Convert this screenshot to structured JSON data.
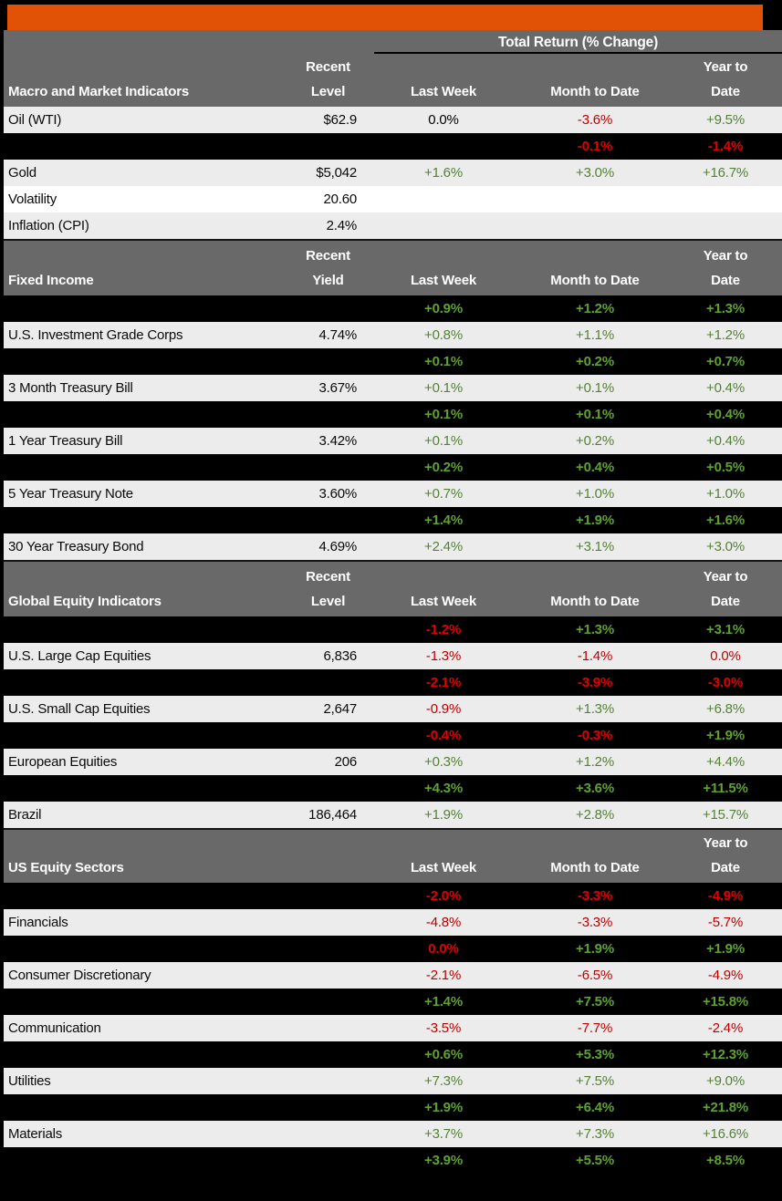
{
  "colors": {
    "banner_color": "#E15206",
    "header_bg": "#696969",
    "header_text": "#FFFFFF",
    "row_gray": "#ECECEC",
    "row_white": "#FFFFFF",
    "hidden_bg": "#000000",
    "green": "#548235",
    "green_on_black": "#5FA232",
    "red": "#C00000",
    "red_on_black": "#E10000"
  },
  "header": {
    "total_return_title": "Total Return (% Change)"
  },
  "columns": {
    "last_week": "Last Week",
    "month_to_date": "Month to Date",
    "year_to_line1": "Year to",
    "year_to_line2": "Date"
  },
  "sections": [
    {
      "title": "Macro and Market Indicators",
      "unit_line1": "Recent",
      "unit_line2": "Level",
      "has_total_return_title": true,
      "rows": [
        {
          "kind": "data",
          "shade": "gray",
          "label": "Oil (WTI)",
          "level": "$62.9",
          "values": [
            {
              "text": "0.0%",
              "color": "black"
            },
            {
              "text": "-3.6%",
              "color": "red"
            },
            {
              "text": "+9.5%",
              "color": "green"
            }
          ]
        },
        {
          "kind": "hidden",
          "values": [
            null,
            {
              "text": "-0.1%",
              "color": "red"
            },
            {
              "text": "-1.4%",
              "color": "red"
            }
          ]
        },
        {
          "kind": "data",
          "shade": "gray",
          "label": "Gold",
          "level": "$5,042",
          "values": [
            {
              "text": "+1.6%",
              "color": "green"
            },
            {
              "text": "+3.0%",
              "color": "green"
            },
            {
              "text": "+16.7%",
              "color": "green"
            }
          ]
        },
        {
          "kind": "data",
          "shade": "white",
          "label": "Volatility",
          "level": "20.60",
          "values": [
            null,
            null,
            null
          ]
        },
        {
          "kind": "data",
          "shade": "gray",
          "label": "Inflation (CPI)",
          "level": "2.4%",
          "values": [
            null,
            null,
            null
          ]
        }
      ]
    },
    {
      "title": "Fixed Income",
      "unit_line1": "Recent",
      "unit_line2": "Yield",
      "has_total_return_title": false,
      "rows": [
        {
          "kind": "hidden",
          "values": [
            {
              "text": "+0.9%",
              "color": "green"
            },
            {
              "text": "+1.2%",
              "color": "green"
            },
            {
              "text": "+1.3%",
              "color": "green"
            }
          ]
        },
        {
          "kind": "data",
          "shade": "gray",
          "label": "U.S. Investment Grade Corps",
          "level": "4.74%",
          "values": [
            {
              "text": "+0.8%",
              "color": "green"
            },
            {
              "text": "+1.1%",
              "color": "green"
            },
            {
              "text": "+1.2%",
              "color": "green"
            }
          ]
        },
        {
          "kind": "hidden",
          "values": [
            {
              "text": "+0.1%",
              "color": "green"
            },
            {
              "text": "+0.2%",
              "color": "green"
            },
            {
              "text": "+0.7%",
              "color": "green"
            }
          ]
        },
        {
          "kind": "data",
          "shade": "gray",
          "label": "3 Month Treasury Bill",
          "level": "3.67%",
          "values": [
            {
              "text": "+0.1%",
              "color": "green"
            },
            {
              "text": "+0.1%",
              "color": "green"
            },
            {
              "text": "+0.4%",
              "color": "green"
            }
          ]
        },
        {
          "kind": "hidden",
          "values": [
            {
              "text": "+0.1%",
              "color": "green"
            },
            {
              "text": "+0.1%",
              "color": "green"
            },
            {
              "text": "+0.4%",
              "color": "green"
            }
          ]
        },
        {
          "kind": "data",
          "shade": "gray",
          "label": "1 Year Treasury Bill",
          "level": "3.42%",
          "values": [
            {
              "text": "+0.1%",
              "color": "green"
            },
            {
              "text": "+0.2%",
              "color": "green"
            },
            {
              "text": "+0.4%",
              "color": "green"
            }
          ]
        },
        {
          "kind": "hidden",
          "values": [
            {
              "text": "+0.2%",
              "color": "green"
            },
            {
              "text": "+0.4%",
              "color": "green"
            },
            {
              "text": "+0.5%",
              "color": "green"
            }
          ]
        },
        {
          "kind": "data",
          "shade": "gray",
          "label": "5 Year Treasury Note",
          "level": "3.60%",
          "values": [
            {
              "text": "+0.7%",
              "color": "green"
            },
            {
              "text": "+1.0%",
              "color": "green"
            },
            {
              "text": "+1.0%",
              "color": "green"
            }
          ]
        },
        {
          "kind": "hidden",
          "values": [
            {
              "text": "+1.4%",
              "color": "green"
            },
            {
              "text": "+1.9%",
              "color": "green"
            },
            {
              "text": "+1.6%",
              "color": "green"
            }
          ]
        },
        {
          "kind": "data",
          "shade": "gray",
          "label": "30 Year Treasury Bond",
          "level": "4.69%",
          "values": [
            {
              "text": "+2.4%",
              "color": "green"
            },
            {
              "text": "+3.1%",
              "color": "green"
            },
            {
              "text": "+3.0%",
              "color": "green"
            }
          ]
        }
      ]
    },
    {
      "title": "Global Equity Indicators",
      "unit_line1": "Recent",
      "unit_line2": "Level",
      "has_total_return_title": false,
      "rows": [
        {
          "kind": "hidden",
          "values": [
            {
              "text": "-1.2%",
              "color": "red"
            },
            {
              "text": "+1.3%",
              "color": "green"
            },
            {
              "text": "+3.1%",
              "color": "green"
            }
          ]
        },
        {
          "kind": "data",
          "shade": "gray",
          "label": "U.S. Large Cap Equities",
          "level": "6,836",
          "values": [
            {
              "text": "-1.3%",
              "color": "red"
            },
            {
              "text": "-1.4%",
              "color": "red"
            },
            {
              "text": "0.0%",
              "color": "red"
            }
          ]
        },
        {
          "kind": "hidden",
          "values": [
            {
              "text": "-2.1%",
              "color": "red"
            },
            {
              "text": "-3.9%",
              "color": "red"
            },
            {
              "text": "-3.0%",
              "color": "red"
            }
          ]
        },
        {
          "kind": "data",
          "shade": "gray",
          "label": "U.S. Small Cap Equities",
          "level": "2,647",
          "values": [
            {
              "text": "-0.9%",
              "color": "red"
            },
            {
              "text": "+1.3%",
              "color": "green"
            },
            {
              "text": "+6.8%",
              "color": "green"
            }
          ]
        },
        {
          "kind": "hidden",
          "values": [
            {
              "text": "-0.4%",
              "color": "red"
            },
            {
              "text": "-0.3%",
              "color": "red"
            },
            {
              "text": "+1.9%",
              "color": "green"
            }
          ]
        },
        {
          "kind": "data",
          "shade": "gray",
          "label": "European Equities",
          "level": "206",
          "values": [
            {
              "text": "+0.3%",
              "color": "green"
            },
            {
              "text": "+1.2%",
              "color": "green"
            },
            {
              "text": "+4.4%",
              "color": "green"
            }
          ]
        },
        {
          "kind": "hidden",
          "values": [
            {
              "text": "+4.3%",
              "color": "green"
            },
            {
              "text": "+3.6%",
              "color": "green"
            },
            {
              "text": "+11.5%",
              "color": "green"
            }
          ]
        },
        {
          "kind": "data",
          "shade": "gray",
          "label": "Brazil",
          "level": "186,464",
          "values": [
            {
              "text": "+1.9%",
              "color": "green"
            },
            {
              "text": "+2.8%",
              "color": "green"
            },
            {
              "text": "+15.7%",
              "color": "green"
            }
          ]
        }
      ]
    },
    {
      "title": "US Equity Sectors",
      "unit_line1": "",
      "unit_line2": "",
      "has_total_return_title": false,
      "rows": [
        {
          "kind": "hidden",
          "values": [
            {
              "text": "-2.0%",
              "color": "red"
            },
            {
              "text": "-3.3%",
              "color": "red"
            },
            {
              "text": "-4.9%",
              "color": "red"
            }
          ]
        },
        {
          "kind": "data",
          "shade": "gray",
          "label": "Financials",
          "level": "",
          "values": [
            {
              "text": "-4.8%",
              "color": "red"
            },
            {
              "text": "-3.3%",
              "color": "red"
            },
            {
              "text": "-5.7%",
              "color": "red"
            }
          ]
        },
        {
          "kind": "hidden",
          "values": [
            {
              "text": "0.0%",
              "color": "red"
            },
            {
              "text": "+1.9%",
              "color": "green"
            },
            {
              "text": "+1.9%",
              "color": "green"
            }
          ]
        },
        {
          "kind": "data",
          "shade": "gray",
          "label": "Consumer Discretionary",
          "level": "",
          "values": [
            {
              "text": "-2.1%",
              "color": "red"
            },
            {
              "text": "-6.5%",
              "color": "red"
            },
            {
              "text": "-4.9%",
              "color": "red"
            }
          ]
        },
        {
          "kind": "hidden",
          "values": [
            {
              "text": "+1.4%",
              "color": "green"
            },
            {
              "text": "+7.5%",
              "color": "green"
            },
            {
              "text": "+15.8%",
              "color": "green"
            }
          ]
        },
        {
          "kind": "data",
          "shade": "gray",
          "label": "Communication",
          "level": "",
          "values": [
            {
              "text": "-3.5%",
              "color": "red"
            },
            {
              "text": "-7.7%",
              "color": "red"
            },
            {
              "text": "-2.4%",
              "color": "red"
            }
          ]
        },
        {
          "kind": "hidden",
          "values": [
            {
              "text": "+0.6%",
              "color": "green"
            },
            {
              "text": "+5.3%",
              "color": "green"
            },
            {
              "text": "+12.3%",
              "color": "green"
            }
          ]
        },
        {
          "kind": "data",
          "shade": "gray",
          "label": "Utilities",
          "level": "",
          "values": [
            {
              "text": "+7.3%",
              "color": "green"
            },
            {
              "text": "+7.5%",
              "color": "green"
            },
            {
              "text": "+9.0%",
              "color": "green"
            }
          ]
        },
        {
          "kind": "hidden",
          "values": [
            {
              "text": "+1.9%",
              "color": "green"
            },
            {
              "text": "+6.4%",
              "color": "green"
            },
            {
              "text": "+21.8%",
              "color": "green"
            }
          ]
        },
        {
          "kind": "data",
          "shade": "gray",
          "label": "Materials",
          "level": "",
          "values": [
            {
              "text": "+3.7%",
              "color": "green"
            },
            {
              "text": "+7.3%",
              "color": "green"
            },
            {
              "text": "+16.6%",
              "color": "green"
            }
          ]
        },
        {
          "kind": "hidden",
          "values": [
            {
              "text": "+3.9%",
              "color": "green"
            },
            {
              "text": "+5.5%",
              "color": "green"
            },
            {
              "text": "+8.5%",
              "color": "green"
            }
          ]
        }
      ]
    }
  ]
}
